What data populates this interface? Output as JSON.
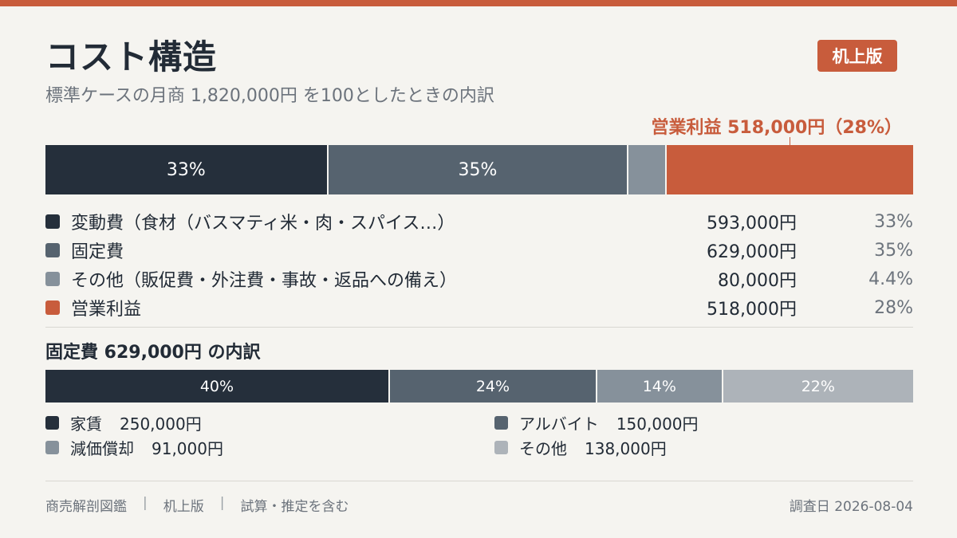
{
  "header": {
    "title": "コスト構造",
    "subtitle": "標準ケースの月商 1,820,000円 を100としたときの内訳",
    "badge": "机上版"
  },
  "callout": {
    "label": "営業利益 518,000円（28%）"
  },
  "colors": {
    "accent": "#c85c3c",
    "variable": "#252f3b",
    "fixed": "#56636f",
    "other": "#86919b",
    "fixed_other": "#adb3b9"
  },
  "chart_data": [
    {
      "type": "bar",
      "orientation": "horizontal-stacked",
      "title": "",
      "categories": [
        "変動費（食材（バスマティ米・肉・スパイス…）",
        "固定費",
        "その他（販促費・外注費・事故・返品への備え）",
        "営業利益"
      ],
      "series": [
        {
          "name": "変動費（食材（バスマティ米・肉・スパイス…）",
          "amount": "593,000円",
          "percent_label": "33%",
          "bar_label": "33%",
          "value": 593000,
          "share": 32.6,
          "color": "#252f3b",
          "swatch": "variable-swatch"
        },
        {
          "name": "固定費",
          "amount": "629,000円",
          "percent_label": "35%",
          "bar_label": "35%",
          "value": 629000,
          "share": 34.6,
          "color": "#56636f",
          "swatch": "fixed-swatch"
        },
        {
          "name": "その他（販促費・外注費・事故・返品への備え）",
          "amount": "80,000円",
          "percent_label": "4.4%",
          "bar_label": "",
          "value": 80000,
          "share": 4.4,
          "color": "#86919b",
          "swatch": "other-swatch"
        },
        {
          "name": "営業利益",
          "amount": "518,000円",
          "percent_label": "28%",
          "bar_label": "",
          "value": 518000,
          "share": 28.4,
          "color": "#c85c3c",
          "swatch": "profit-swatch"
        }
      ],
      "total": 1820000
    },
    {
      "type": "bar",
      "orientation": "horizontal-stacked",
      "title": "固定費 629,000円 の内訳",
      "categories": [
        "家賃",
        "アルバイト",
        "減価償却",
        "その他"
      ],
      "series": [
        {
          "name": "家賃",
          "amount": "250,000円",
          "bar_label": "40%",
          "value": 250000,
          "share": 39.7,
          "color": "#252f3b"
        },
        {
          "name": "アルバイト",
          "amount": "150,000円",
          "bar_label": "24%",
          "value": 150000,
          "share": 23.9,
          "color": "#56636f"
        },
        {
          "name": "減価償却",
          "amount": "91,000円",
          "bar_label": "14%",
          "value": 91000,
          "share": 14.5,
          "color": "#86919b"
        },
        {
          "name": "その他",
          "amount": "138,000円",
          "bar_label": "22%",
          "value": 138000,
          "share": 21.9,
          "color": "#adb3b9"
        }
      ],
      "total": 629000
    }
  ],
  "footer": {
    "items": [
      "商売解剖図鑑",
      "机上版",
      "試算・推定を含む"
    ],
    "separator": "|",
    "date": "調査日 2026-08-04"
  }
}
